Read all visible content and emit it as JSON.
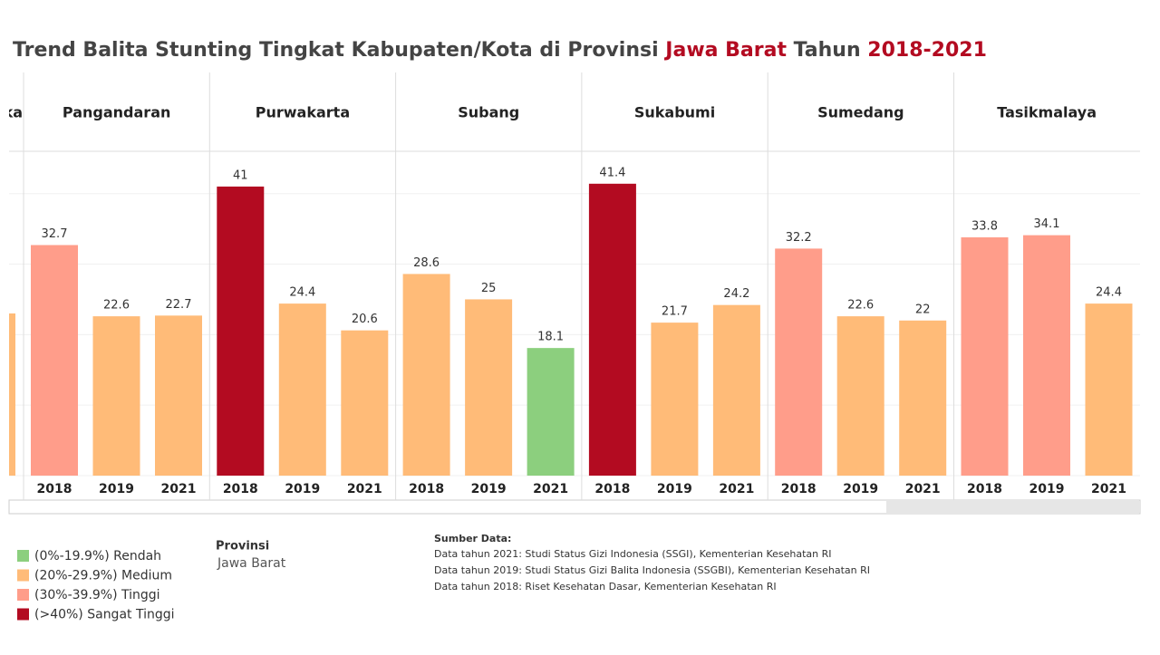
{
  "chart_data": {
    "type": "bar",
    "title": [
      "Trend Balita Stunting Tingkat Kabupaten/Kota di Provinsi ",
      "Jawa Barat",
      " Tahun ",
      "2018-2021"
    ],
    "ylim": [
      0,
      46
    ],
    "yticks": [
      0,
      10,
      20,
      30,
      40
    ],
    "grid": true,
    "partial_panel": {
      "label": "ka",
      "value": 23.0,
      "color": "#ffbb78"
    },
    "panels": [
      {
        "name": "Pangandaran",
        "categories": [
          "2018",
          "2019",
          "2021"
        ],
        "values": [
          32.7,
          22.6,
          22.7
        ],
        "colors": [
          "#ff9d8a",
          "#ffbb78",
          "#ffbb78"
        ]
      },
      {
        "name": "Purwakarta",
        "categories": [
          "2018",
          "2019",
          "2021"
        ],
        "values": [
          41.0,
          24.4,
          20.6
        ],
        "colors": [
          "#b30b21",
          "#ffbb78",
          "#ffbb78"
        ]
      },
      {
        "name": "Subang",
        "categories": [
          "2018",
          "2019",
          "2021"
        ],
        "values": [
          28.6,
          25.0,
          18.1
        ],
        "colors": [
          "#ffbb78",
          "#ffbb78",
          "#8ccf7e"
        ]
      },
      {
        "name": "Sukabumi",
        "categories": [
          "2018",
          "2019",
          "2021"
        ],
        "values": [
          41.4,
          21.7,
          24.2
        ],
        "colors": [
          "#b30b21",
          "#ffbb78",
          "#ffbb78"
        ]
      },
      {
        "name": "Sumedang",
        "categories": [
          "2018",
          "2019",
          "2021"
        ],
        "values": [
          32.2,
          22.6,
          22.0
        ],
        "colors": [
          "#ff9d8a",
          "#ffbb78",
          "#ffbb78"
        ]
      },
      {
        "name": "Tasikmalaya",
        "categories": [
          "2018",
          "2019",
          "2021"
        ],
        "values": [
          33.8,
          34.1,
          24.4
        ],
        "colors": [
          "#ff9d8a",
          "#ff9d8a",
          "#ffbb78"
        ]
      }
    ],
    "legend": [
      {
        "label": "(0%-19.9%) Rendah",
        "color": "#8ccf7e"
      },
      {
        "label": "(20%-29.9%) Medium",
        "color": "#ffbb78"
      },
      {
        "label": "(30%-39.9%) Tinggi",
        "color": "#ff9d8a"
      },
      {
        "label": "(>40%) Sangat Tinggi",
        "color": "#b30b21"
      }
    ]
  },
  "filter": {
    "title": "Provinsi",
    "value": "Jawa Barat"
  },
  "source": {
    "title": "Sumber Data:",
    "lines": [
      "Data tahun 2021: Studi Status Gizi Indonesia (SSGI), Kementerian Kesehatan RI",
      "Data tahun 2019: Studi Status Gizi Balita Indonesia (SSGBI), Kementerian Kesehatan RI",
      "Data tahun 2018: Riset Kesehatan Dasar, Kementerian Kesehatan RI"
    ]
  }
}
